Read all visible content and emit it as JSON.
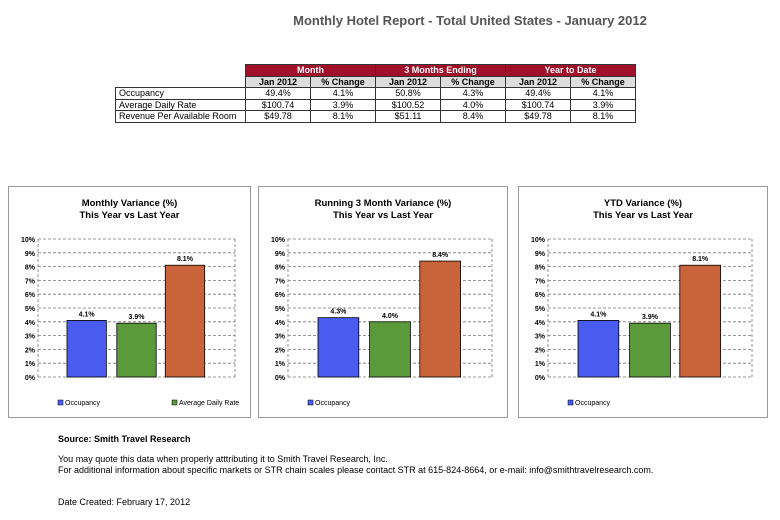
{
  "title": "Monthly Hotel Report - Total United States - January 2012",
  "table": {
    "groups": [
      "Month",
      "3 Months Ending",
      "Year to Date"
    ],
    "subheaders": [
      "Jan 2012",
      "% Change",
      "Jan 2012",
      "% Change",
      "Jan 2012",
      "% Change"
    ],
    "rows": [
      {
        "label": "Occupancy",
        "values": [
          "49.4%",
          "4.1%",
          "50.8%",
          "4.3%",
          "49.4%",
          "4.1%"
        ]
      },
      {
        "label": "Average Daily Rate",
        "values": [
          "$100.74",
          "3.9%",
          "$100.52",
          "4.0%",
          "$100.74",
          "3.9%"
        ]
      },
      {
        "label": "Revenue Per Available Room",
        "values": [
          "$49.78",
          "8.1%",
          "$51.11",
          "8.4%",
          "$49.78",
          "8.1%"
        ]
      }
    ]
  },
  "colors": {
    "header": "#a0102a",
    "occupancy": "#4a5cf0",
    "adr": "#5a9a3a",
    "revpar": "#c8633a"
  },
  "chart_data": [
    {
      "type": "bar",
      "title": [
        "Monthly Variance (%)",
        "This Year vs Last Year"
      ],
      "values": [
        4.1,
        3.9,
        8.1
      ],
      "labels": [
        "4.1%",
        "3.9%",
        "8.1%"
      ],
      "legend": [
        "Occupancy",
        "Average Daily Rate"
      ],
      "ylim": [
        0,
        10
      ],
      "yticks": [
        "0%",
        "1%",
        "2%",
        "3%",
        "4%",
        "5%",
        "6%",
        "7%",
        "8%",
        "9%",
        "10%"
      ],
      "grid": true
    },
    {
      "type": "bar",
      "title": [
        "Running 3 Month Variance (%)",
        "This Year vs Last Year"
      ],
      "values": [
        4.3,
        4.0,
        8.4
      ],
      "labels": [
        "4.3%",
        "4.0%",
        "8.4%"
      ],
      "legend": [
        "Occupancy"
      ],
      "ylim": [
        0,
        10
      ],
      "yticks": [
        "0%",
        "1%",
        "2%",
        "3%",
        "4%",
        "5%",
        "6%",
        "7%",
        "8%",
        "9%",
        "10%"
      ],
      "grid": true
    },
    {
      "type": "bar",
      "title": [
        "YTD Variance (%)",
        "This Year vs Last Year"
      ],
      "values": [
        4.1,
        3.9,
        8.1
      ],
      "labels": [
        "4.1%",
        "3.9%",
        "8.1%"
      ],
      "legend": [
        "Occupancy"
      ],
      "ylim": [
        0,
        10
      ],
      "yticks": [
        "0%",
        "1%",
        "2%",
        "3%",
        "4%",
        "5%",
        "6%",
        "7%",
        "8%",
        "9%",
        "10%"
      ],
      "grid": true
    }
  ],
  "footer": {
    "source": "Source: Smith Travel Research",
    "quote": "You may quote this data when properly atttributing it to Smith Travel Research, Inc.",
    "contact": "For additional information about specific markets or STR chain scales please contact STR at 615-824-8664, or e-mail: info@smithtravelresearch.com.",
    "date": "Date Created: February 17, 2012"
  }
}
